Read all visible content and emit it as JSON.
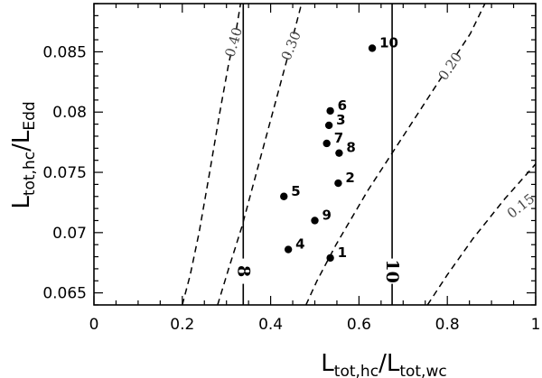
{
  "chart_data": {
    "type": "scatter",
    "xlim": [
      0,
      1
    ],
    "ylim": [
      0.064,
      0.089
    ],
    "x_ticks": [
      0,
      0.2,
      0.4,
      0.6,
      0.8,
      1
    ],
    "x_tick_labels": [
      "0",
      "0.2",
      "0.4",
      "0.6",
      "0.8",
      "1"
    ],
    "y_ticks": [
      0.065,
      0.07,
      0.075,
      0.08,
      0.085
    ],
    "y_tick_labels": [
      "0.065",
      "0.07",
      "0.075",
      "0.08",
      "0.085"
    ],
    "xlabel": {
      "main": "L",
      "sub1": "tot,hc",
      "slash": "/L",
      "sub2": "tot,wc"
    },
    "ylabel": {
      "main": "L",
      "sub1": "tot,hc",
      "slash": "/L",
      "sub2": "Edd"
    },
    "points": [
      {
        "label": "1",
        "x": 0.535,
        "y": 0.0679
      },
      {
        "label": "2",
        "x": 0.553,
        "y": 0.0741
      },
      {
        "label": "3",
        "x": 0.532,
        "y": 0.0789
      },
      {
        "label": "4",
        "x": 0.44,
        "y": 0.0686
      },
      {
        "label": "5",
        "x": 0.43,
        "y": 0.073
      },
      {
        "label": "6",
        "x": 0.535,
        "y": 0.0801
      },
      {
        "label": "7",
        "x": 0.527,
        "y": 0.0774
      },
      {
        "label": "8",
        "x": 0.555,
        "y": 0.0766
      },
      {
        "label": "9",
        "x": 0.5,
        "y": 0.071
      },
      {
        "label": "10",
        "x": 0.63,
        "y": 0.0853
      }
    ],
    "vertical_lines": [
      {
        "label": "8",
        "x": 0.338
      },
      {
        "label": "10",
        "x": 0.675
      }
    ],
    "contours": [
      {
        "label": "0.40",
        "points": [
          [
            0.2,
            0.064
          ],
          [
            0.218,
            0.0665
          ],
          [
            0.238,
            0.07
          ],
          [
            0.262,
            0.075
          ],
          [
            0.285,
            0.08
          ],
          [
            0.305,
            0.084
          ],
          [
            0.322,
            0.0868
          ],
          [
            0.332,
            0.089
          ]
        ]
      },
      {
        "label": "0.30",
        "points": [
          [
            0.28,
            0.064
          ],
          [
            0.305,
            0.067
          ],
          [
            0.335,
            0.0705
          ],
          [
            0.368,
            0.075
          ],
          [
            0.405,
            0.08
          ],
          [
            0.438,
            0.0845
          ],
          [
            0.47,
            0.089
          ]
        ]
      },
      {
        "label": "0.20",
        "points": [
          [
            0.48,
            0.064
          ],
          [
            0.505,
            0.066
          ],
          [
            0.548,
            0.069
          ],
          [
            0.62,
            0.0735
          ],
          [
            0.7,
            0.078
          ],
          [
            0.78,
            0.0825
          ],
          [
            0.852,
            0.0865
          ],
          [
            0.885,
            0.089
          ]
        ]
      },
      {
        "label": "0.15",
        "points": [
          [
            0.755,
            0.064
          ],
          [
            0.8,
            0.0665
          ],
          [
            0.858,
            0.0695
          ],
          [
            0.93,
            0.0728
          ],
          [
            1.0,
            0.0757
          ]
        ]
      }
    ]
  }
}
